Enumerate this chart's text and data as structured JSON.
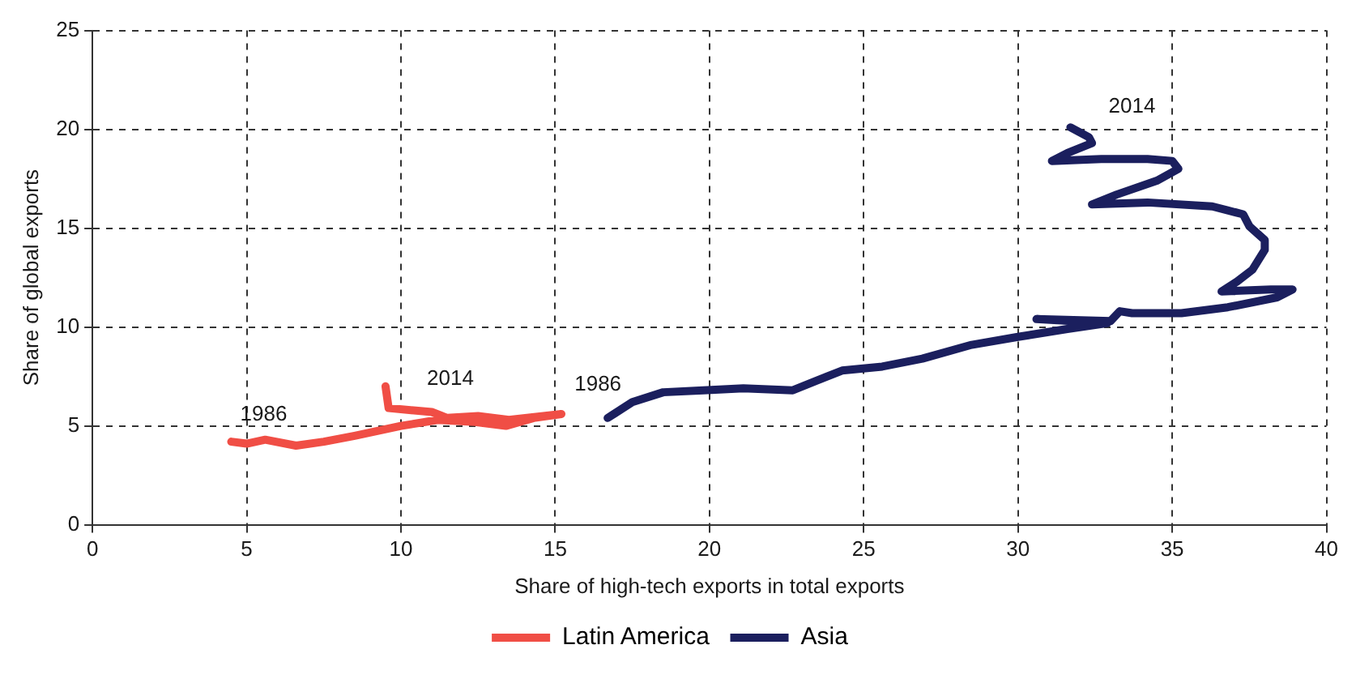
{
  "chart_data": {
    "type": "line",
    "xlabel": "Share of high-tech exports in total exports",
    "ylabel": "Share of global exports",
    "xlim": [
      0,
      40
    ],
    "xticks": [
      0,
      5,
      10,
      15,
      20,
      25,
      30,
      35,
      40
    ],
    "ylim": [
      0,
      25
    ],
    "yticks": [
      0,
      5,
      10,
      15,
      20,
      25
    ],
    "grid": true,
    "legend": "bottom",
    "marker": "none",
    "line_style": "solid",
    "series": [
      {
        "name": "Latin America",
        "color": "#f04e45",
        "x": [
          4.5,
          5.0,
          5.6,
          6.6,
          7.5,
          8.5,
          10.0,
          11.2,
          12.4,
          13.4,
          14.3,
          15.2,
          13.5,
          12.5,
          11.5,
          11.0,
          9.6,
          9.5
        ],
        "values": [
          4.2,
          4.1,
          4.3,
          4.0,
          4.2,
          4.5,
          5.0,
          5.3,
          5.2,
          5.0,
          5.4,
          5.6,
          5.3,
          5.5,
          5.4,
          5.7,
          5.9,
          7.0
        ]
      },
      {
        "name": "Asia",
        "color": "#1b1f5e",
        "x": [
          16.7,
          17.5,
          18.5,
          19.8,
          21.1,
          22.7,
          23.5,
          24.3,
          25.6,
          26.9,
          28.5,
          30.0,
          31.6,
          32.9,
          30.6,
          33.0,
          33.3,
          33.7,
          35.3,
          36.8,
          38.4,
          38.9,
          38.2,
          36.6,
          37.1,
          37.6,
          38.0,
          38.0,
          37.5,
          37.3,
          36.3,
          34.2,
          32.4,
          33.2,
          34.5,
          35.2,
          35.0,
          34.2,
          32.7,
          31.1,
          31.6,
          32.4,
          32.3,
          31.7
        ],
        "values": [
          5.4,
          6.2,
          6.7,
          6.8,
          6.9,
          6.8,
          7.3,
          7.8,
          8.0,
          8.4,
          9.1,
          9.5,
          9.9,
          10.2,
          10.4,
          10.3,
          10.8,
          10.7,
          10.7,
          11.0,
          11.5,
          11.9,
          11.9,
          11.8,
          12.3,
          12.9,
          13.9,
          14.4,
          15.1,
          15.7,
          16.1,
          16.3,
          16.2,
          16.7,
          17.4,
          18.0,
          18.4,
          18.5,
          18.5,
          18.4,
          18.8,
          19.3,
          19.6,
          20.1
        ]
      }
    ],
    "annotations": [
      {
        "text": "1986",
        "x": 4.5,
        "y": 4.2
      },
      {
        "text": "2014",
        "x": 9.5,
        "y": 7.0
      },
      {
        "text": "1986",
        "x": 16.7,
        "y": 5.4
      },
      {
        "text": "2014",
        "x": 31.7,
        "y": 20.1
      }
    ]
  }
}
